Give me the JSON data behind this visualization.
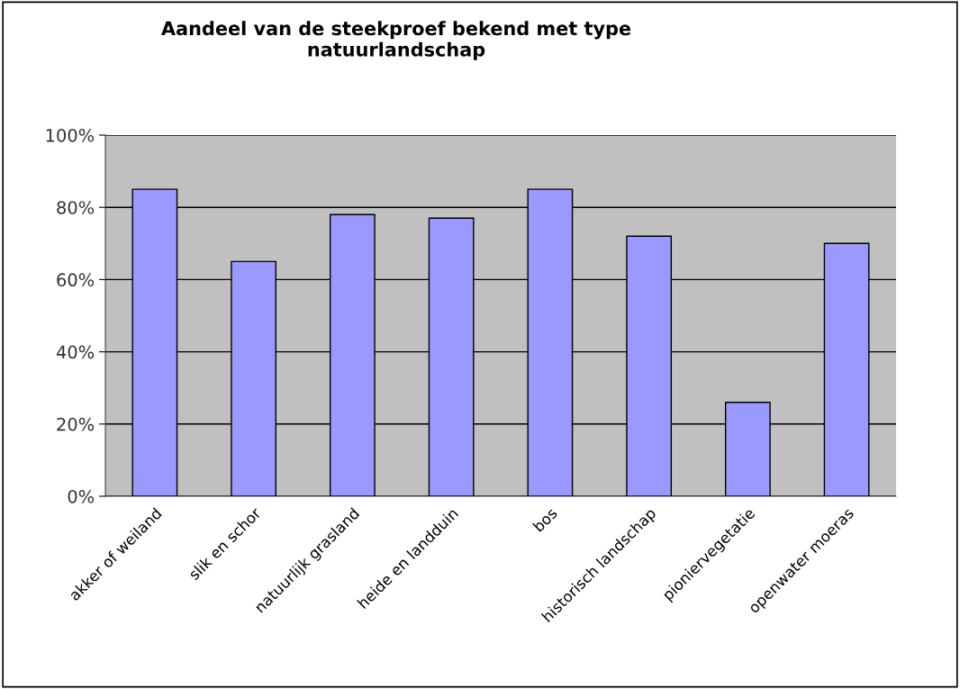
{
  "chart_data": {
    "type": "bar",
    "title": "Aandeel van de steekproef bekend met type\nnatuurlandschap",
    "categories": [
      "akker of weiland",
      "slik en schor",
      "natuurlijk grasland",
      "heide en landduin",
      "bos",
      "historisch landschap",
      "pioniervegetatie",
      "openwater moeras"
    ],
    "values": [
      85,
      65,
      78,
      77,
      85,
      72,
      26,
      70
    ],
    "color": "#9999ff",
    "ylim": [
      0,
      100
    ],
    "yticks": [
      {
        "value": 0,
        "label": "0%"
      },
      {
        "value": 20,
        "label": "20%"
      },
      {
        "value": 40,
        "label": "40%"
      },
      {
        "value": 60,
        "label": "60%"
      },
      {
        "value": 80,
        "label": "80%"
      },
      {
        "value": 100,
        "label": "100%"
      }
    ],
    "grid": "y"
  }
}
